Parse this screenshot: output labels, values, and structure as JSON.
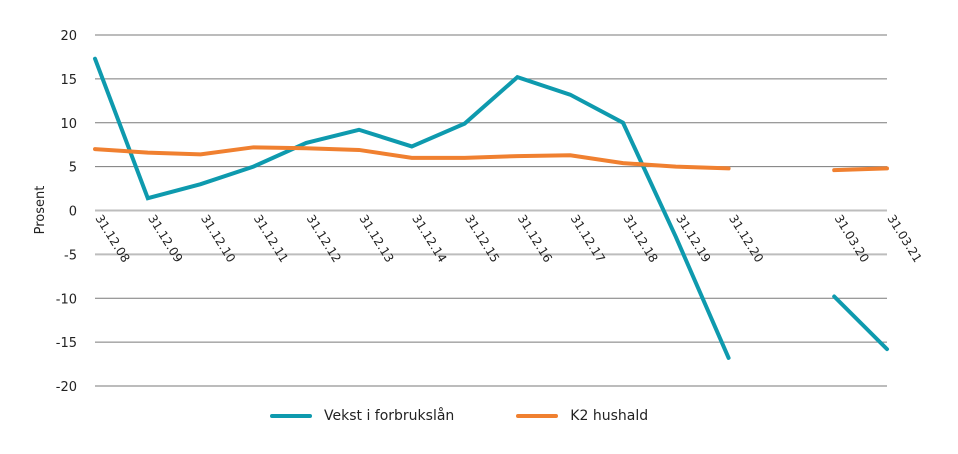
{
  "chart_data": {
    "type": "line",
    "title": "",
    "xlabel": "",
    "ylabel": "Prosent",
    "ylim": [
      -20,
      20
    ],
    "yticks": [
      20,
      15,
      10,
      5,
      0,
      -5,
      -10,
      -15,
      -20
    ],
    "grid": true,
    "legend_position": "bottom",
    "categories": [
      "31.12.08",
      "31.12.09",
      "31.12.10",
      "31.12.11",
      "31.12.12",
      "31.12.13",
      "31.12.14",
      "31.12.15",
      "31.12.16",
      "31.12.17",
      "31.12.18",
      "31.12.19",
      "31.12.20",
      "",
      "31.03.20",
      "31.03.21"
    ],
    "series": [
      {
        "name": "Vekst i forbrukslån",
        "color": "#0E9AAE",
        "values": [
          17.3,
          1.4,
          3.0,
          5.0,
          7.7,
          9.2,
          7.3,
          9.9,
          15.2,
          13.2,
          10.0,
          -3.0,
          -16.8,
          null,
          -9.8,
          -15.8
        ]
      },
      {
        "name": "K2 hushald",
        "color": "#F08030",
        "values": [
          7.0,
          6.6,
          6.4,
          7.2,
          7.1,
          6.9,
          6.0,
          6.0,
          6.2,
          6.3,
          5.4,
          5.0,
          4.8,
          null,
          4.6,
          4.8
        ]
      }
    ]
  },
  "legend": {
    "items": [
      {
        "label": "Vekst i forbrukslån",
        "color": "#0E9AAE"
      },
      {
        "label": "K2 hushald",
        "color": "#F08030"
      }
    ]
  }
}
